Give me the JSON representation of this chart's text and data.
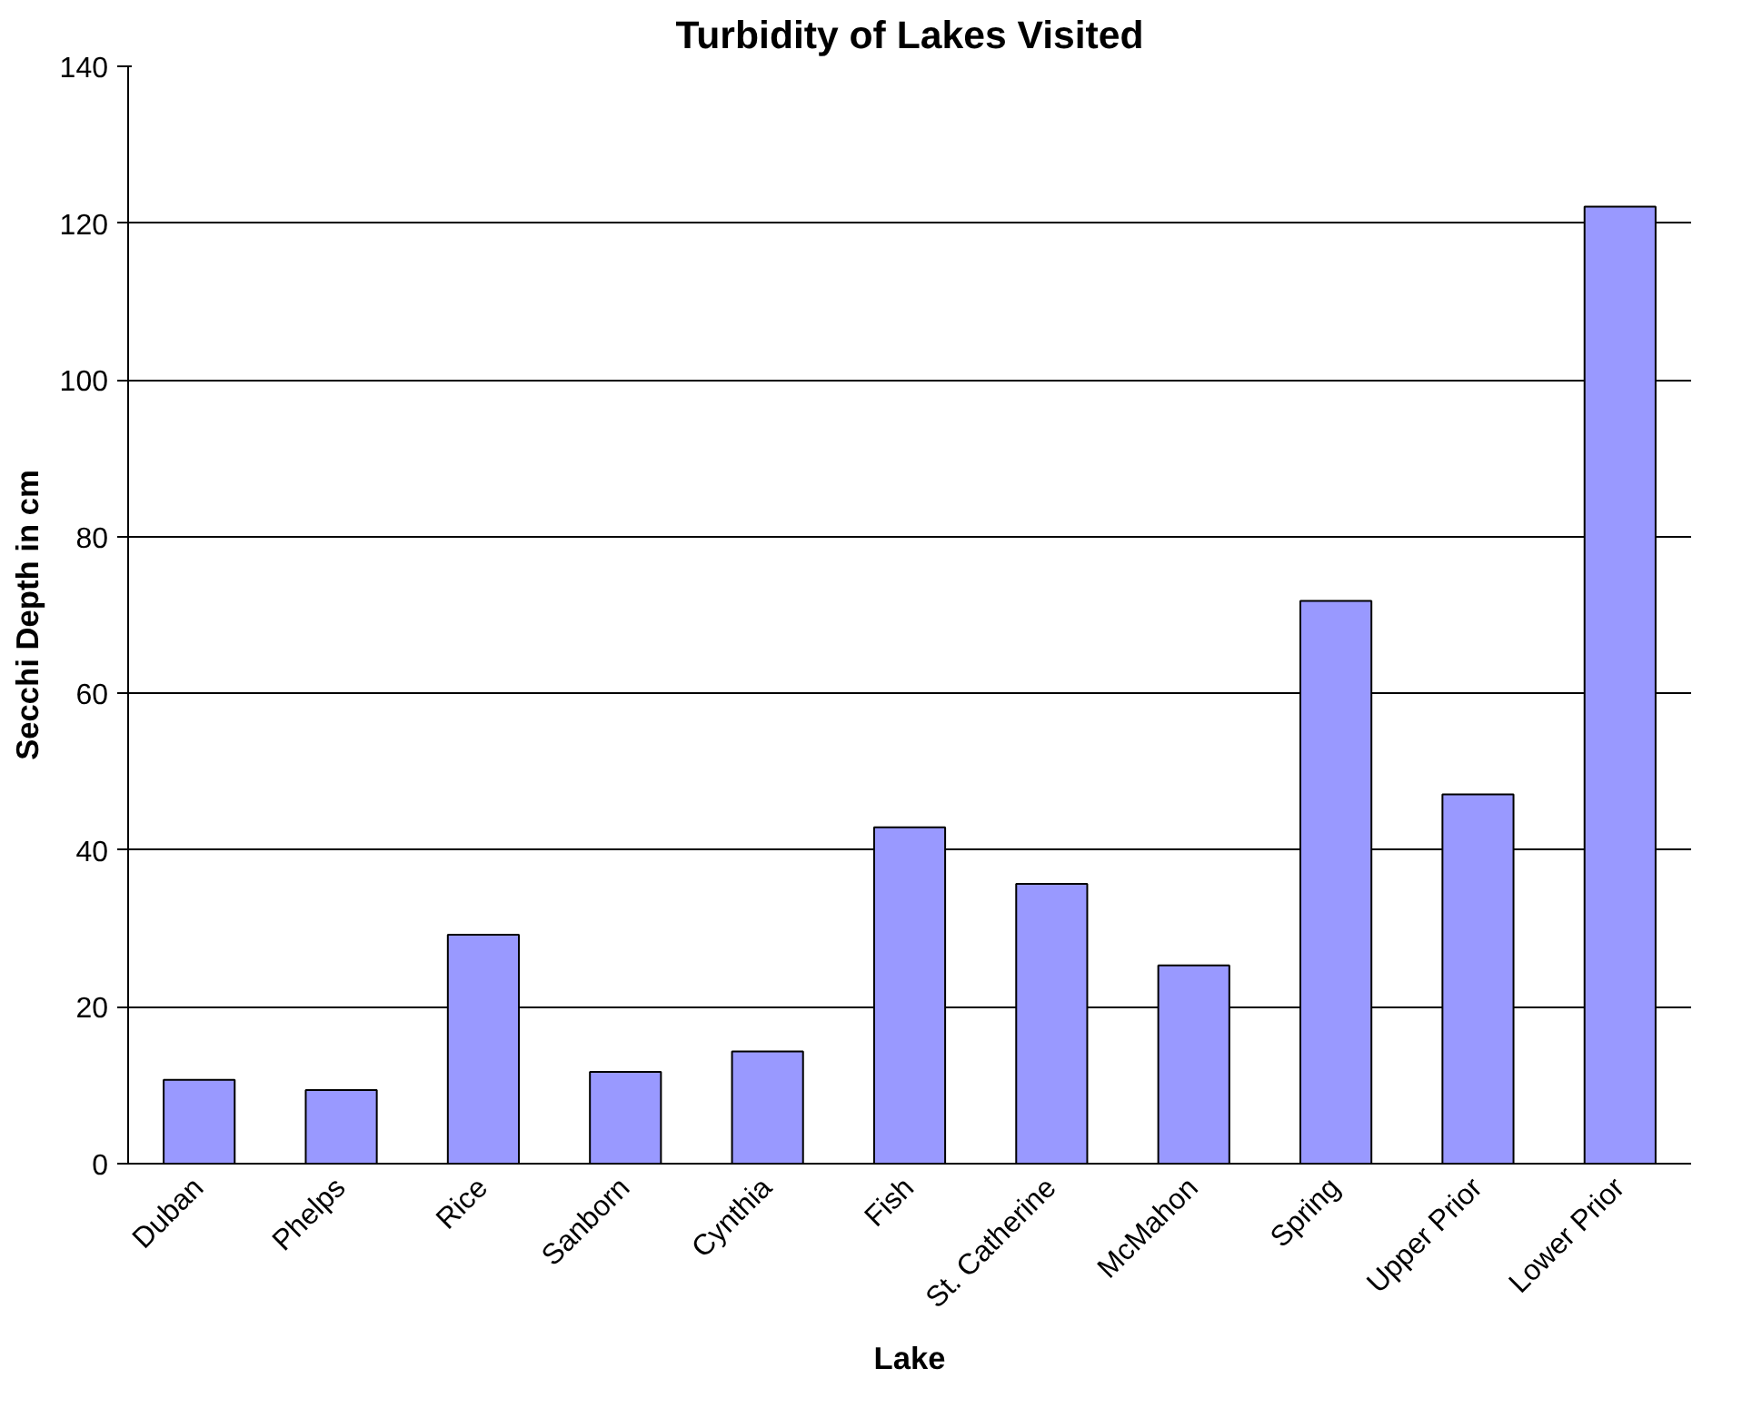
{
  "chart_data": {
    "type": "bar",
    "title": "Turbidity of Lakes Visited",
    "xlabel": "Lake",
    "ylabel": "Secchi Depth in cm",
    "categories": [
      "Duban",
      "Phelps",
      "Rice",
      "Sanborn",
      "Cynthia",
      "Fish",
      "St. Catherine",
      "McMahon",
      "Spring",
      "Upper Prior",
      "Lower Prior"
    ],
    "values": [
      10.7,
      9.4,
      29.2,
      11.7,
      14.3,
      42.9,
      35.7,
      25.3,
      71.8,
      47.1,
      122.1
    ],
    "color": "#9999ff",
    "ylim": [
      0,
      140
    ],
    "yticks": [
      0,
      20,
      40,
      60,
      80,
      100,
      120,
      140
    ],
    "grid": "y"
  }
}
